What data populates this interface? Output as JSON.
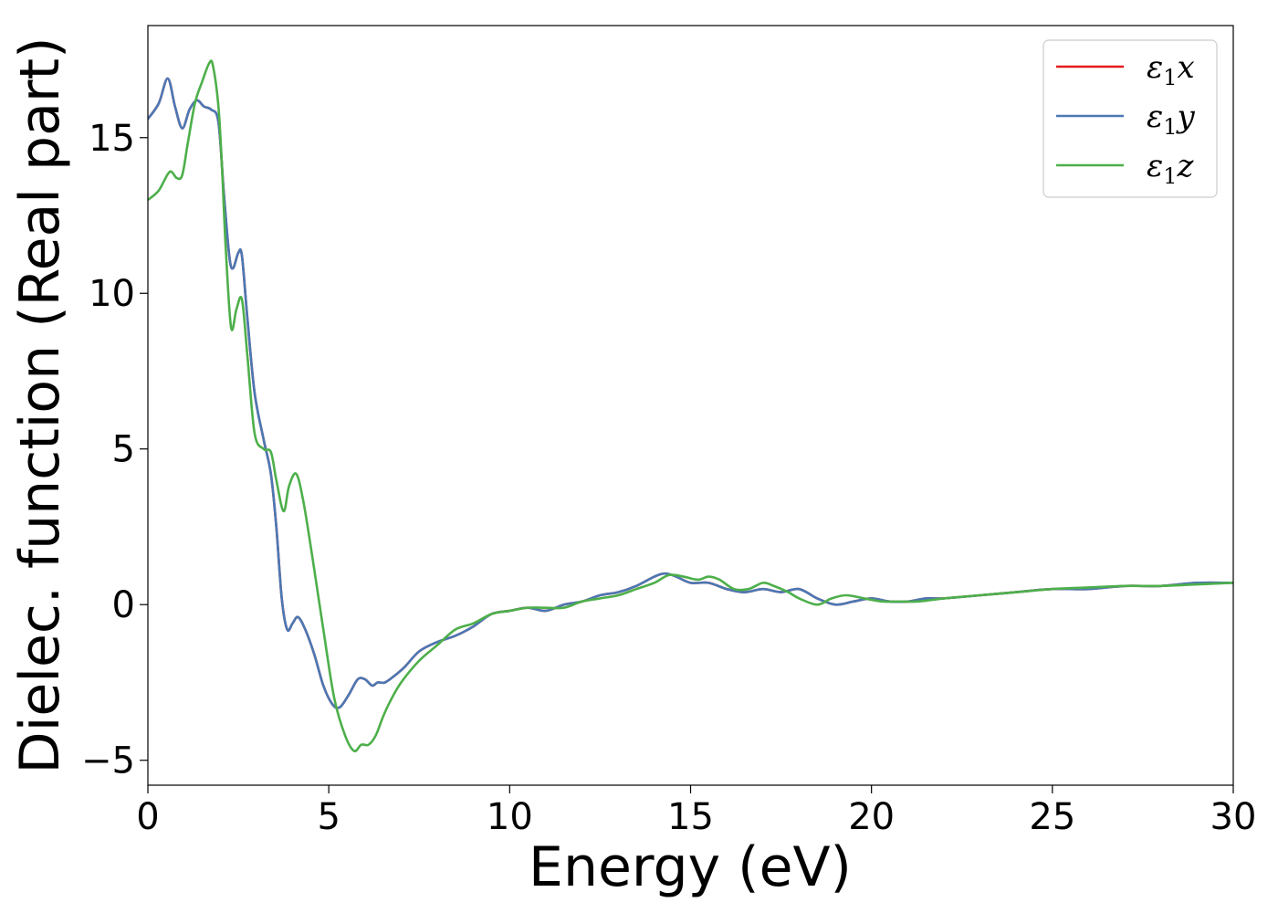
{
  "chart_data": {
    "type": "line",
    "xlabel": "Energy (eV)",
    "ylabel": "Dielec. function (Real part)",
    "xlim": [
      0,
      30
    ],
    "ylim": [
      -5.8,
      18.6
    ],
    "xticks": [
      0,
      5,
      10,
      15,
      20,
      25,
      30
    ],
    "xtick_labels": [
      "0",
      "5",
      "10",
      "15",
      "20",
      "25",
      "30"
    ],
    "yticks": [
      -5,
      0,
      5,
      10,
      15
    ],
    "ytick_labels": [
      "−5",
      "0",
      "5",
      "10",
      "15"
    ],
    "grid": false,
    "legend_position": "top-right",
    "series": [
      {
        "name": "ε1x",
        "legend_main": "ε",
        "legend_sub": "1",
        "legend_tail": "x",
        "color": "#e41a1c",
        "x": [
          0,
          0.3,
          0.55,
          0.75,
          0.95,
          1.15,
          1.35,
          1.55,
          1.75,
          1.95,
          2.1,
          2.25,
          2.35,
          2.5,
          2.6,
          2.75,
          2.95,
          3.2,
          3.4,
          3.55,
          3.7,
          3.85,
          4.0,
          4.15,
          4.35,
          4.6,
          4.85,
          5.1,
          5.3,
          5.55,
          5.8,
          6.0,
          6.2,
          6.35,
          6.55,
          6.8,
          7.1,
          7.5,
          8.0,
          8.5,
          9.0,
          9.5,
          10.0,
          10.5,
          11.0,
          11.5,
          12.0,
          12.5,
          13.0,
          13.5,
          14.0,
          14.3,
          14.6,
          15.0,
          15.5,
          16.0,
          16.5,
          17.0,
          17.5,
          18.0,
          18.5,
          19.0,
          19.5,
          20.0,
          20.5,
          21.0,
          21.5,
          22.0,
          23.0,
          24.0,
          25.0,
          26.0,
          27.0,
          28.0,
          29.0,
          30.0
        ],
        "y": [
          15.6,
          16.1,
          16.9,
          16.0,
          15.3,
          15.9,
          16.2,
          16.0,
          15.9,
          15.5,
          13.2,
          11.2,
          10.8,
          11.3,
          11.2,
          9.2,
          6.8,
          5.3,
          4.2,
          2.5,
          0.2,
          -0.8,
          -0.6,
          -0.4,
          -0.8,
          -1.6,
          -2.6,
          -3.2,
          -3.3,
          -2.9,
          -2.4,
          -2.4,
          -2.6,
          -2.5,
          -2.5,
          -2.3,
          -2.0,
          -1.5,
          -1.2,
          -1.0,
          -0.7,
          -0.3,
          -0.2,
          -0.1,
          -0.2,
          0.0,
          0.1,
          0.3,
          0.4,
          0.6,
          0.9,
          1.0,
          0.9,
          0.7,
          0.7,
          0.5,
          0.4,
          0.5,
          0.4,
          0.5,
          0.2,
          0.0,
          0.1,
          0.2,
          0.1,
          0.1,
          0.2,
          0.2,
          0.3,
          0.4,
          0.5,
          0.5,
          0.6,
          0.6,
          0.7,
          0.7
        ]
      },
      {
        "name": "ε1y",
        "legend_main": "ε",
        "legend_sub": "1",
        "legend_tail": "y",
        "color": "#4a78b4",
        "x": [
          0,
          0.3,
          0.55,
          0.75,
          0.95,
          1.15,
          1.35,
          1.55,
          1.75,
          1.95,
          2.1,
          2.25,
          2.35,
          2.5,
          2.6,
          2.75,
          2.95,
          3.2,
          3.4,
          3.55,
          3.7,
          3.85,
          4.0,
          4.15,
          4.35,
          4.6,
          4.85,
          5.1,
          5.3,
          5.55,
          5.8,
          6.0,
          6.2,
          6.35,
          6.55,
          6.8,
          7.1,
          7.5,
          8.0,
          8.5,
          9.0,
          9.5,
          10.0,
          10.5,
          11.0,
          11.5,
          12.0,
          12.5,
          13.0,
          13.5,
          14.0,
          14.3,
          14.6,
          15.0,
          15.5,
          16.0,
          16.5,
          17.0,
          17.5,
          18.0,
          18.5,
          19.0,
          19.5,
          20.0,
          20.5,
          21.0,
          21.5,
          22.0,
          23.0,
          24.0,
          25.0,
          26.0,
          27.0,
          28.0,
          29.0,
          30.0
        ],
        "y": [
          15.6,
          16.1,
          16.9,
          16.0,
          15.3,
          15.9,
          16.2,
          16.0,
          15.9,
          15.5,
          13.2,
          11.2,
          10.8,
          11.3,
          11.2,
          9.2,
          6.8,
          5.3,
          4.2,
          2.5,
          0.2,
          -0.8,
          -0.6,
          -0.4,
          -0.8,
          -1.6,
          -2.6,
          -3.2,
          -3.3,
          -2.9,
          -2.4,
          -2.4,
          -2.6,
          -2.5,
          -2.5,
          -2.3,
          -2.0,
          -1.5,
          -1.2,
          -1.0,
          -0.7,
          -0.3,
          -0.2,
          -0.1,
          -0.2,
          0.0,
          0.1,
          0.3,
          0.4,
          0.6,
          0.9,
          1.0,
          0.9,
          0.7,
          0.7,
          0.5,
          0.4,
          0.5,
          0.4,
          0.5,
          0.2,
          0.0,
          0.1,
          0.2,
          0.1,
          0.1,
          0.2,
          0.2,
          0.3,
          0.4,
          0.5,
          0.5,
          0.6,
          0.6,
          0.7,
          0.7
        ]
      },
      {
        "name": "ε1z",
        "legend_main": "ε",
        "legend_sub": "1",
        "legend_tail": "z",
        "color": "#4daf4a",
        "x": [
          0,
          0.3,
          0.6,
          0.8,
          0.95,
          1.1,
          1.3,
          1.5,
          1.7,
          1.8,
          1.95,
          2.05,
          2.15,
          2.3,
          2.45,
          2.6,
          2.75,
          2.95,
          3.2,
          3.4,
          3.55,
          3.75,
          3.9,
          4.1,
          4.3,
          4.55,
          4.85,
          5.15,
          5.45,
          5.7,
          5.9,
          6.1,
          6.3,
          6.5,
          6.7,
          7.0,
          7.5,
          8.0,
          8.5,
          9.0,
          9.5,
          10.0,
          10.5,
          11.0,
          11.5,
          12.0,
          12.5,
          13.0,
          13.5,
          14.0,
          14.4,
          14.8,
          15.2,
          15.5,
          15.8,
          16.2,
          16.6,
          17.0,
          17.3,
          17.7,
          18.0,
          18.5,
          18.9,
          19.3,
          19.8,
          20.3,
          20.8,
          21.3,
          22.0,
          23.0,
          24.0,
          25.0,
          26.0,
          27.0,
          28.0,
          29.0,
          30.0
        ],
        "y": [
          13.0,
          13.3,
          13.9,
          13.7,
          13.8,
          14.8,
          16.1,
          16.8,
          17.4,
          17.3,
          16.0,
          14.0,
          11.5,
          8.9,
          9.5,
          9.8,
          8.0,
          5.5,
          5.0,
          4.9,
          4.0,
          3.0,
          3.8,
          4.2,
          3.3,
          1.5,
          -0.8,
          -3.0,
          -4.2,
          -4.7,
          -4.5,
          -4.5,
          -4.2,
          -3.6,
          -3.1,
          -2.5,
          -1.8,
          -1.3,
          -0.8,
          -0.6,
          -0.3,
          -0.2,
          -0.1,
          -0.1,
          -0.1,
          0.1,
          0.2,
          0.3,
          0.5,
          0.7,
          0.95,
          0.9,
          0.8,
          0.9,
          0.8,
          0.5,
          0.5,
          0.7,
          0.6,
          0.4,
          0.2,
          0.0,
          0.2,
          0.3,
          0.2,
          0.1,
          0.1,
          0.1,
          0.2,
          0.3,
          0.4,
          0.5,
          0.55,
          0.6,
          0.6,
          0.65,
          0.7
        ]
      }
    ]
  }
}
